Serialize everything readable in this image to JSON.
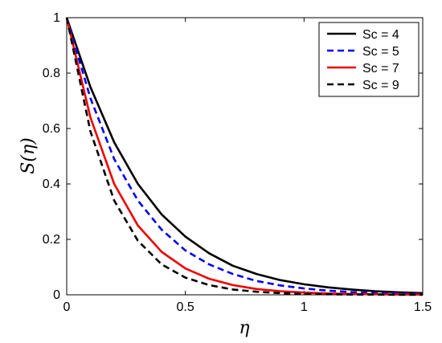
{
  "chart_data": {
    "type": "line",
    "title": "",
    "xlabel": "η",
    "ylabel": "S(η)",
    "xlim": [
      0,
      1.5
    ],
    "ylim": [
      0,
      1
    ],
    "x_ticks": [
      "0",
      "0.5",
      "1",
      "1.5"
    ],
    "y_ticks": [
      "0",
      "0.2",
      "0.4",
      "0.6",
      "0.8",
      "1"
    ],
    "grid": false,
    "legend_position": "top-right",
    "x": [
      0,
      0.1,
      0.2,
      0.3,
      0.4,
      0.5,
      0.6,
      0.7,
      0.8,
      0.9,
      1.0,
      1.1,
      1.2,
      1.3,
      1.4,
      1.5
    ],
    "series": [
      {
        "name": "Sc = 4",
        "color": "#000000",
        "dash": "solid",
        "values": [
          1,
          0.75,
          0.55,
          0.4,
          0.29,
          0.21,
          0.15,
          0.105,
          0.075,
          0.053,
          0.038,
          0.027,
          0.019,
          0.013,
          0.009,
          0.006
        ]
      },
      {
        "name": "Sc = 5",
        "color": "#0000ee",
        "dash": "dashed",
        "values": [
          1,
          0.71,
          0.49,
          0.34,
          0.235,
          0.16,
          0.11,
          0.075,
          0.05,
          0.034,
          0.023,
          0.015,
          0.01,
          0.007,
          0.005,
          0.003
        ]
      },
      {
        "name": "Sc = 7",
        "color": "#ee0000",
        "dash": "solid",
        "values": [
          1,
          0.64,
          0.4,
          0.25,
          0.155,
          0.095,
          0.058,
          0.035,
          0.021,
          0.013,
          0.008,
          0.005,
          0.003,
          0.002,
          0.001,
          0.001
        ]
      },
      {
        "name": "Sc = 9",
        "color": "#000000",
        "dash": "dashed",
        "values": [
          1,
          0.59,
          0.34,
          0.195,
          0.11,
          0.062,
          0.035,
          0.019,
          0.011,
          0.006,
          0.003,
          0.002,
          0.001,
          0.001,
          0,
          0
        ]
      }
    ]
  }
}
